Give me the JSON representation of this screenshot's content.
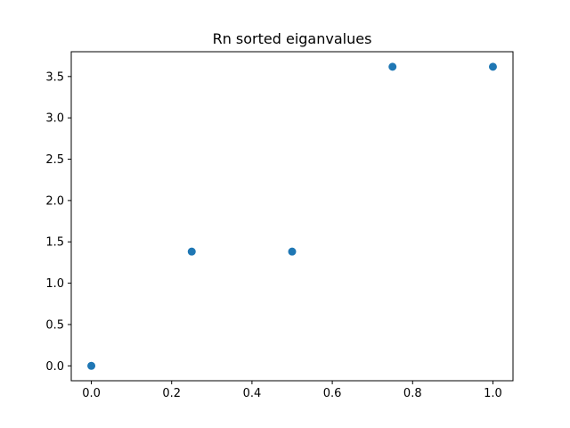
{
  "chart_data": {
    "type": "scatter",
    "title": "Rn sorted eiganvalues",
    "xlabel": "",
    "ylabel": "",
    "x": [
      0.0,
      0.25,
      0.5,
      0.75,
      1.0
    ],
    "y": [
      0.0,
      1.382,
      1.382,
      3.618,
      3.618
    ],
    "xlim": [
      -0.05,
      1.05
    ],
    "ylim": [
      -0.18,
      3.8
    ],
    "xticks": [
      0.0,
      0.2,
      0.4,
      0.6,
      0.8,
      1.0
    ],
    "xtick_labels": [
      "0.0",
      "0.2",
      "0.4",
      "0.6",
      "0.8",
      "1.0"
    ],
    "yticks": [
      0.0,
      0.5,
      1.0,
      1.5,
      2.0,
      2.5,
      3.0,
      3.5
    ],
    "ytick_labels": [
      "0.0",
      "0.5",
      "1.0",
      "1.5",
      "2.0",
      "2.5",
      "3.0",
      "3.5"
    ],
    "grid": false,
    "legend": "none",
    "marker_color": "#1f77b4"
  }
}
